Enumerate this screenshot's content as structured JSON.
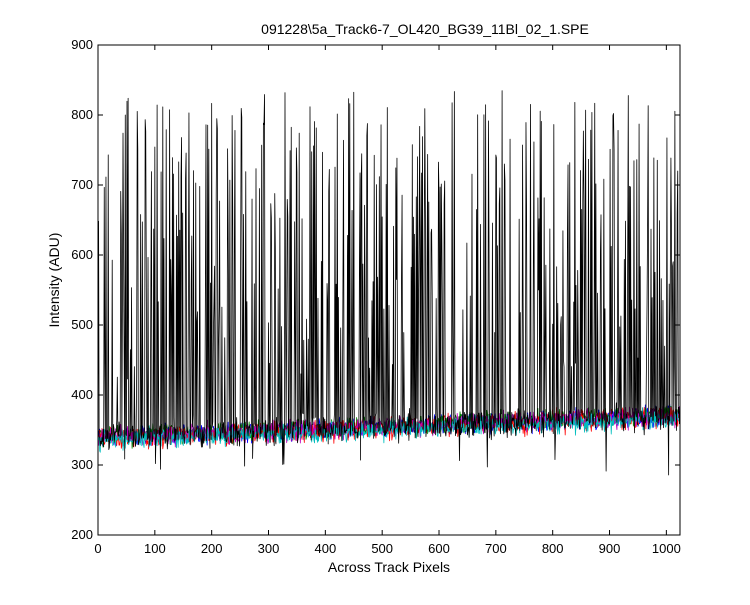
{
  "chart_data": {
    "type": "line",
    "title": "091228\\5a_Track6-7_OL420_BG39_11Bl_02_1.SPE",
    "xlabel": "Across Track Pixels",
    "ylabel": "Intensity (ADU)",
    "xlim": [
      0,
      1024
    ],
    "ylim": [
      200,
      900
    ],
    "xticks": [
      0,
      100,
      200,
      300,
      400,
      500,
      600,
      700,
      800,
      900,
      1000
    ],
    "yticks": [
      200,
      300,
      400,
      500,
      600,
      700,
      800,
      900
    ],
    "grid": false,
    "legend": "none",
    "series": [
      {
        "color": "#000000",
        "baseline_start": 340,
        "baseline_end": 368,
        "noise": 20,
        "spike_fraction": 0.32,
        "spike_min": 420,
        "spike_max": 835,
        "description_of_shape": "frequent spikes between ~420 and ~835"
      },
      {
        "color": "#0000ff",
        "baseline_start": 338,
        "baseline_end": 370,
        "noise": 14
      },
      {
        "color": "#008000",
        "baseline_start": 340,
        "baseline_end": 372,
        "noise": 14
      },
      {
        "color": "#ff0000",
        "baseline_start": 337,
        "baseline_end": 369,
        "noise": 14
      },
      {
        "color": "#bf00bf",
        "baseline_start": 339,
        "baseline_end": 371,
        "noise": 14
      },
      {
        "color": "#00bfbf",
        "baseline_start": 336,
        "baseline_end": 366,
        "noise": 14
      }
    ]
  }
}
